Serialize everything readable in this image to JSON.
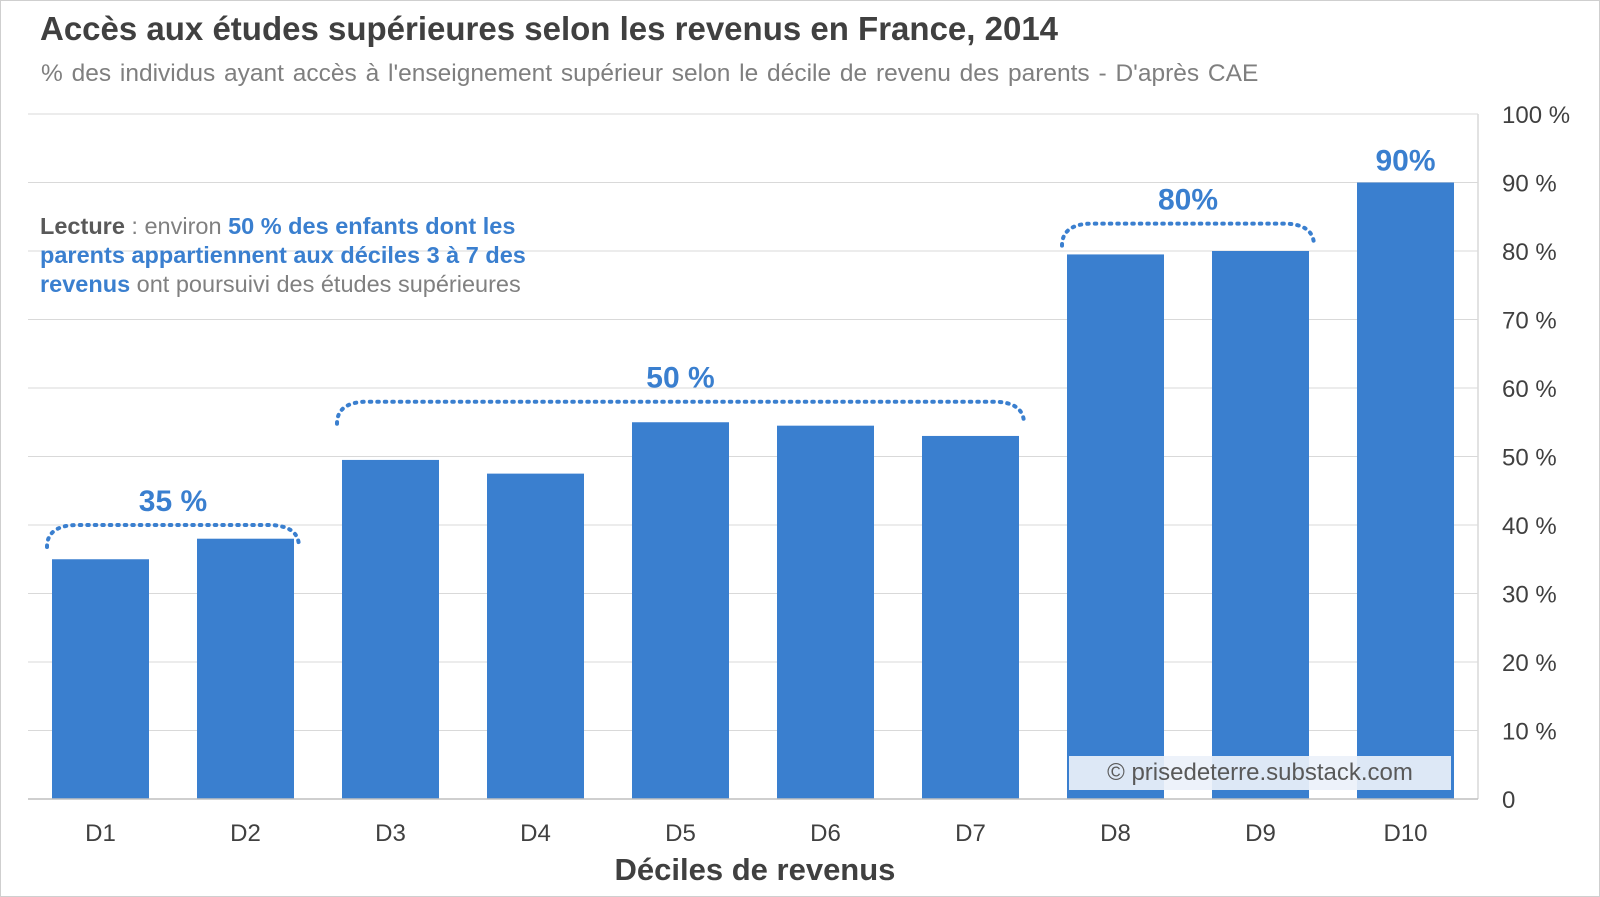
{
  "title": "Accès aux études supérieures selon les revenus en France, 2014",
  "subtitle": "% des individus ayant accès à l'enseignement supérieur selon le décile de revenu des parents - D'après CAE",
  "lecture": {
    "label": "Lecture",
    "sep": " : environ ",
    "highlight": "50 % des enfants dont les parents appartiennent aux déciles 3 à 7 des revenus",
    "rest": " ont poursuivi des études supérieures"
  },
  "watermark": "© prisedeterre.substack.com",
  "colors": {
    "bar": "#3a7fcf",
    "grid": "#d9d9d9",
    "axis_text": "#404040",
    "annotation": "#3a7fcf"
  },
  "chart_data": {
    "type": "bar",
    "title": "Accès aux études supérieures selon les revenus en France, 2014",
    "xlabel": "Déciles de revenus",
    "ylabel": "",
    "categories": [
      "D1",
      "D2",
      "D3",
      "D4",
      "D5",
      "D6",
      "D7",
      "D8",
      "D9",
      "D10"
    ],
    "values": [
      35,
      38,
      49.5,
      47.5,
      55,
      54.5,
      53,
      79.5,
      80,
      90
    ],
    "ylim": [
      0,
      100
    ],
    "yticks": [
      0,
      10,
      20,
      30,
      40,
      50,
      60,
      70,
      80,
      90,
      100
    ],
    "ytick_labels": [
      "0",
      "10 %",
      "20 %",
      "30 %",
      "40 %",
      "50 %",
      "60 %",
      "70 %",
      "80 %",
      "90 %",
      "100 %"
    ],
    "y_axis_side": "right",
    "grid": true,
    "groups": [
      {
        "label": "35 %",
        "from": 0,
        "to": 1,
        "level": 40
      },
      {
        "label": "50 %",
        "from": 2,
        "to": 6,
        "level": 58
      },
      {
        "label": "80%",
        "from": 7,
        "to": 8,
        "level": 84
      }
    ],
    "annotations": [
      {
        "label": "90%",
        "category": 9
      }
    ]
  }
}
